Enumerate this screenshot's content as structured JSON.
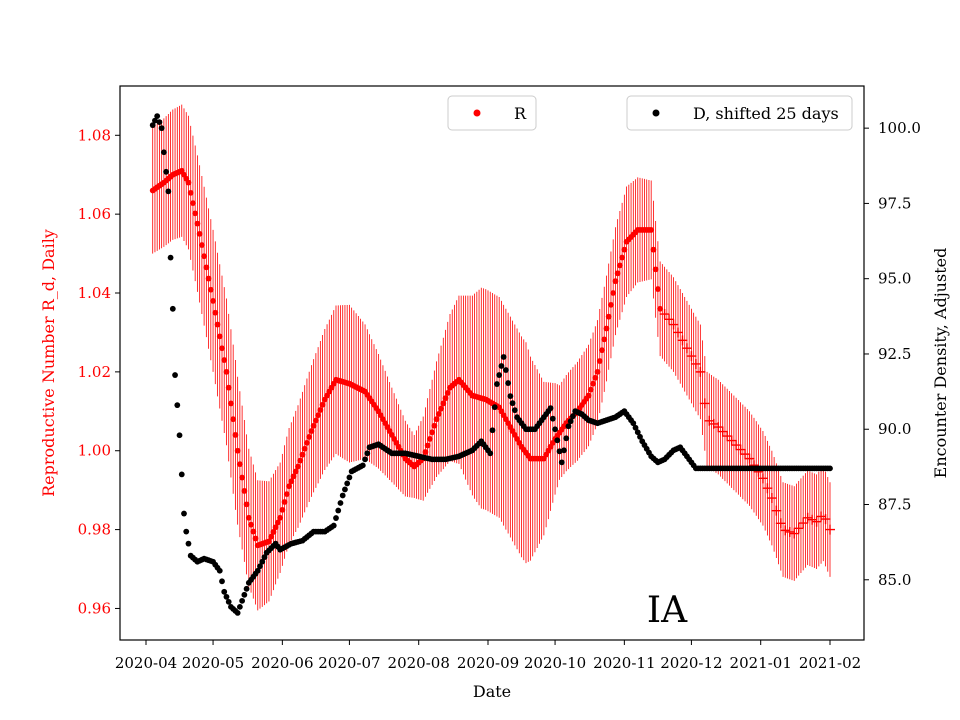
{
  "chart_data": {
    "type": "scatter",
    "region_label": "IA",
    "xlabel": "Date",
    "ylabel_left": "Reproductive Number R_d, Daily",
    "ylabel_right": "Encounter Density, Adjusted",
    "x_tick_labels": [
      "2020-04",
      "2020-05",
      "2020-06",
      "2020-07",
      "2020-08",
      "2020-09",
      "2020-10",
      "2020-11",
      "2020-12",
      "2021-01",
      "2021-02"
    ],
    "x_tick_days": [
      0,
      30,
      61,
      91,
      122,
      153,
      183,
      214,
      244,
      275,
      306
    ],
    "left_axis": {
      "ylim": [
        0.952,
        1.0925
      ],
      "ticks": [
        0.96,
        0.98,
        1.0,
        1.02,
        1.04,
        1.06,
        1.08
      ],
      "tick_labels": [
        "0.96",
        "0.98",
        "1.00",
        "1.02",
        "1.04",
        "1.06",
        "1.08"
      ],
      "color": "#ff0000"
    },
    "right_axis": {
      "ylim": [
        83.0,
        101.4
      ],
      "ticks": [
        85.0,
        87.5,
        90.0,
        92.5,
        95.0,
        97.5,
        100.0
      ],
      "tick_labels": [
        "85.0",
        "87.5",
        "90.0",
        "92.5",
        "95.0",
        "97.5",
        "100.0"
      ],
      "color": "#000000"
    },
    "legend": [
      {
        "label": "R",
        "color": "#ff0000",
        "position": "top-center"
      },
      {
        "label": "D, shifted 25 days",
        "color": "#000000",
        "position": "top-right"
      }
    ],
    "series_R": {
      "name": "R",
      "color": "#ff0000",
      "marker_dot_until_day": 230,
      "keypoints": [
        [
          3,
          1.066
        ],
        [
          8,
          1.068
        ],
        [
          12,
          1.07
        ],
        [
          16,
          1.071
        ],
        [
          19,
          1.068
        ],
        [
          24,
          1.055
        ],
        [
          30,
          1.038
        ],
        [
          36,
          1.02
        ],
        [
          41,
          1.0
        ],
        [
          46,
          0.983
        ],
        [
          50,
          0.976
        ],
        [
          55,
          0.977
        ],
        [
          60,
          0.983
        ],
        [
          64,
          0.991
        ],
        [
          68,
          0.996
        ],
        [
          74,
          1.005
        ],
        [
          80,
          1.013
        ],
        [
          85,
          1.018
        ],
        [
          91,
          1.017
        ],
        [
          98,
          1.015
        ],
        [
          104,
          1.01
        ],
        [
          110,
          1.004
        ],
        [
          116,
          0.998
        ],
        [
          120,
          0.996
        ],
        [
          124,
          0.998
        ],
        [
          130,
          1.008
        ],
        [
          136,
          1.016
        ],
        [
          140,
          1.018
        ],
        [
          146,
          1.014
        ],
        [
          152,
          1.013
        ],
        [
          158,
          1.011
        ],
        [
          163,
          1.006
        ],
        [
          168,
          1.001
        ],
        [
          172,
          0.998
        ],
        [
          178,
          0.998
        ],
        [
          183,
          1.003
        ],
        [
          188,
          1.007
        ],
        [
          193,
          1.01
        ],
        [
          198,
          1.014
        ],
        [
          202,
          1.02
        ],
        [
          206,
          1.031
        ],
        [
          210,
          1.043
        ],
        [
          215,
          1.053
        ],
        [
          220,
          1.056
        ],
        [
          226,
          1.056
        ],
        [
          230,
          1.036
        ],
        [
          236,
          1.032
        ],
        [
          242,
          1.026
        ],
        [
          248,
          1.02
        ],
        [
          251,
          1.008
        ],
        [
          256,
          1.006
        ],
        [
          263,
          1.002
        ],
        [
          270,
          0.998
        ],
        [
          276,
          0.993
        ],
        [
          280,
          0.988
        ],
        [
          285,
          0.98
        ],
        [
          290,
          0.979
        ],
        [
          296,
          0.983
        ],
        [
          300,
          0.982
        ],
        [
          303,
          0.984
        ],
        [
          306,
          0.98
        ]
      ],
      "err_keypoints": [
        [
          3,
          0.016
        ],
        [
          20,
          0.017
        ],
        [
          40,
          0.019
        ],
        [
          60,
          0.014
        ],
        [
          91,
          0.02
        ],
        [
          110,
          0.012
        ],
        [
          120,
          0.008
        ],
        [
          150,
          0.028
        ],
        [
          170,
          0.028
        ],
        [
          185,
          0.012
        ],
        [
          215,
          0.014
        ],
        [
          230,
          0.012
        ],
        [
          260,
          0.012
        ],
        [
          280,
          0.012
        ],
        [
          306,
          0.012
        ]
      ]
    },
    "series_D": {
      "name": "D, shifted 25 days",
      "color": "#000000",
      "keypoints": [
        [
          3,
          100.1
        ],
        [
          5,
          100.4
        ],
        [
          7,
          100.0
        ],
        [
          8,
          99.2
        ],
        [
          10,
          97.9
        ],
        [
          11,
          95.7
        ],
        [
          12,
          94.0
        ],
        [
          13,
          91.8
        ],
        [
          14,
          90.8
        ],
        [
          15,
          89.8
        ],
        [
          16,
          88.5
        ],
        [
          17,
          87.2
        ],
        [
          18,
          86.6
        ],
        [
          20,
          85.8
        ],
        [
          23,
          85.6
        ],
        [
          26,
          85.7
        ],
        [
          30,
          85.6
        ],
        [
          33,
          85.3
        ],
        [
          35,
          84.6
        ],
        [
          38,
          84.1
        ],
        [
          41,
          83.9
        ],
        [
          43,
          84.3
        ],
        [
          46,
          84.9
        ],
        [
          50,
          85.3
        ],
        [
          54,
          85.9
        ],
        [
          58,
          86.2
        ],
        [
          60,
          86.0
        ],
        [
          65,
          86.2
        ],
        [
          70,
          86.3
        ],
        [
          75,
          86.6
        ],
        [
          80,
          86.6
        ],
        [
          84,
          86.8
        ],
        [
          88,
          87.8
        ],
        [
          92,
          88.6
        ],
        [
          97,
          88.8
        ],
        [
          100,
          89.4
        ],
        [
          104,
          89.5
        ],
        [
          110,
          89.2
        ],
        [
          116,
          89.2
        ],
        [
          122,
          89.1
        ],
        [
          128,
          89.0
        ],
        [
          134,
          89.0
        ],
        [
          140,
          89.1
        ],
        [
          146,
          89.3
        ],
        [
          150,
          89.6
        ],
        [
          154,
          89.2
        ],
        [
          157,
          91.5
        ],
        [
          160,
          92.4
        ],
        [
          163,
          91.1
        ],
        [
          166,
          90.4
        ],
        [
          170,
          90.0
        ],
        [
          174,
          90.0
        ],
        [
          178,
          90.4
        ],
        [
          181,
          90.7
        ],
        [
          183,
          90.0
        ],
        [
          186,
          88.9
        ],
        [
          189,
          90.1
        ],
        [
          192,
          90.6
        ],
        [
          195,
          90.5
        ],
        [
          198,
          90.3
        ],
        [
          202,
          90.2
        ],
        [
          206,
          90.3
        ],
        [
          210,
          90.4
        ],
        [
          214,
          90.6
        ],
        [
          218,
          90.2
        ],
        [
          222,
          89.6
        ],
        [
          226,
          89.1
        ],
        [
          229,
          88.9
        ],
        [
          232,
          89.0
        ],
        [
          236,
          89.3
        ],
        [
          239,
          89.4
        ],
        [
          244,
          88.9
        ],
        [
          246,
          88.7
        ],
        [
          306,
          88.7
        ]
      ]
    }
  }
}
